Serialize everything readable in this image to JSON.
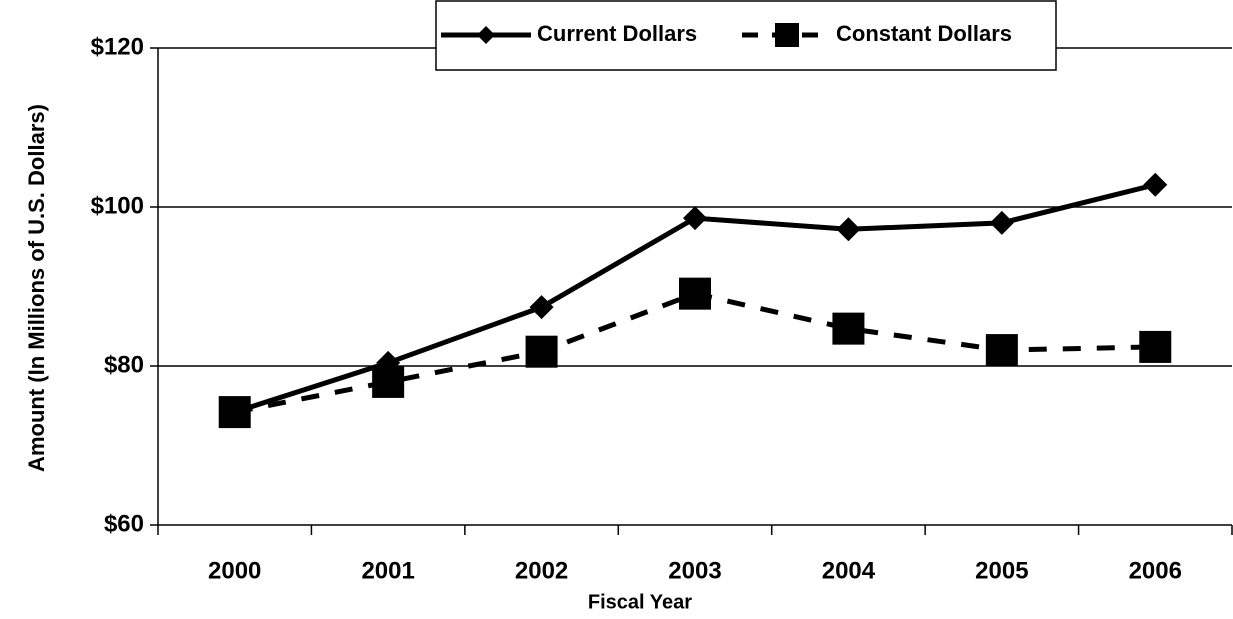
{
  "chart_data": {
    "type": "line",
    "xlabel": "Fiscal Year",
    "ylabel": "Amount (In Millions of U.S. Dollars)",
    "categories": [
      "2000",
      "2001",
      "2002",
      "2003",
      "2004",
      "2005",
      "2006"
    ],
    "series": [
      {
        "name": "Current Dollars",
        "color": "#000000",
        "marker": "diamond",
        "dash": "solid",
        "values": [
          74.2,
          80.4,
          87.4,
          98.6,
          97.2,
          98.0,
          102.8
        ]
      },
      {
        "name": "Constant Dollars",
        "color": "#000000",
        "marker": "square",
        "dash": "dashed",
        "values": [
          74.2,
          78.0,
          81.8,
          89.1,
          84.7,
          82.0,
          82.4
        ]
      }
    ],
    "ylim": [
      60,
      120
    ],
    "yticks": [
      {
        "value": 60,
        "label": "$60"
      },
      {
        "value": 80,
        "label": "$80"
      },
      {
        "value": 100,
        "label": "$100"
      },
      {
        "value": 120,
        "label": "$120"
      }
    ],
    "grid": true,
    "legend": "top"
  }
}
